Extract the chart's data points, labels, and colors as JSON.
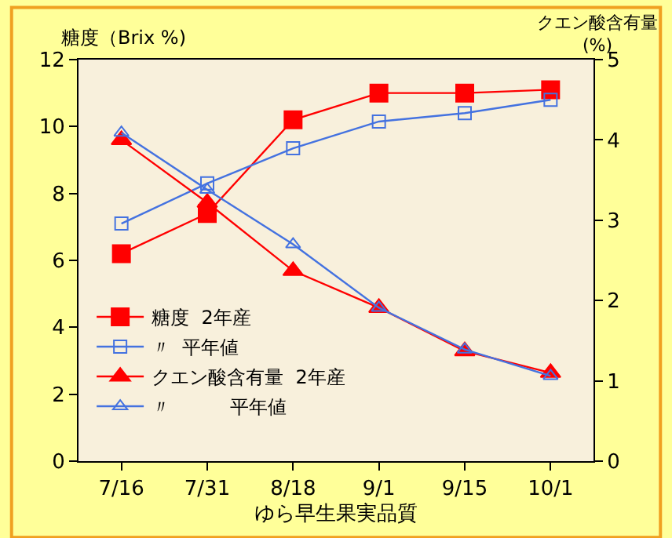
{
  "chart_data": {
    "type": "line",
    "xlabel": "ゆら早生果実品質",
    "ylabel": "糖度（Brix %)",
    "y2label": "クエン酸含有量\n(%)",
    "categories": [
      "7/16",
      "7/31",
      "8/18",
      "9/1",
      "9/15",
      "10/1"
    ],
    "ylim": [
      0,
      12
    ],
    "yticks": [
      0,
      2,
      4,
      6,
      8,
      10,
      12
    ],
    "y2lim": [
      0,
      5
    ],
    "y2ticks": [
      0,
      1,
      2,
      3,
      4,
      5
    ],
    "grid": false,
    "legend": "bottom left",
    "line_style": "solid",
    "series": [
      {
        "name": "糖度  2年産",
        "color": "#ff0000",
        "marker": "square",
        "values": [
          6.2,
          7.4,
          10.2,
          11.0,
          11.0,
          11.1
        ]
      },
      {
        "name": "〃  平年値",
        "color": "#4472e0",
        "marker": "square",
        "values": [
          7.1,
          8.3,
          9.35,
          10.15,
          10.4,
          10.8
        ]
      },
      {
        "name": "クエン酸含有量  2年産",
        "color": "#ff0000",
        "marker": "triangle",
        "axis": "y2",
        "values": [
          4.0,
          3.22,
          2.37,
          1.91,
          1.37,
          1.1
        ]
      },
      {
        "name": "〃          平年値",
        "color": "#4472e0",
        "marker": "triangle",
        "axis": "y2",
        "values": [
          4.09,
          3.38,
          2.7,
          1.91,
          1.39,
          1.06
        ]
      }
    ]
  }
}
